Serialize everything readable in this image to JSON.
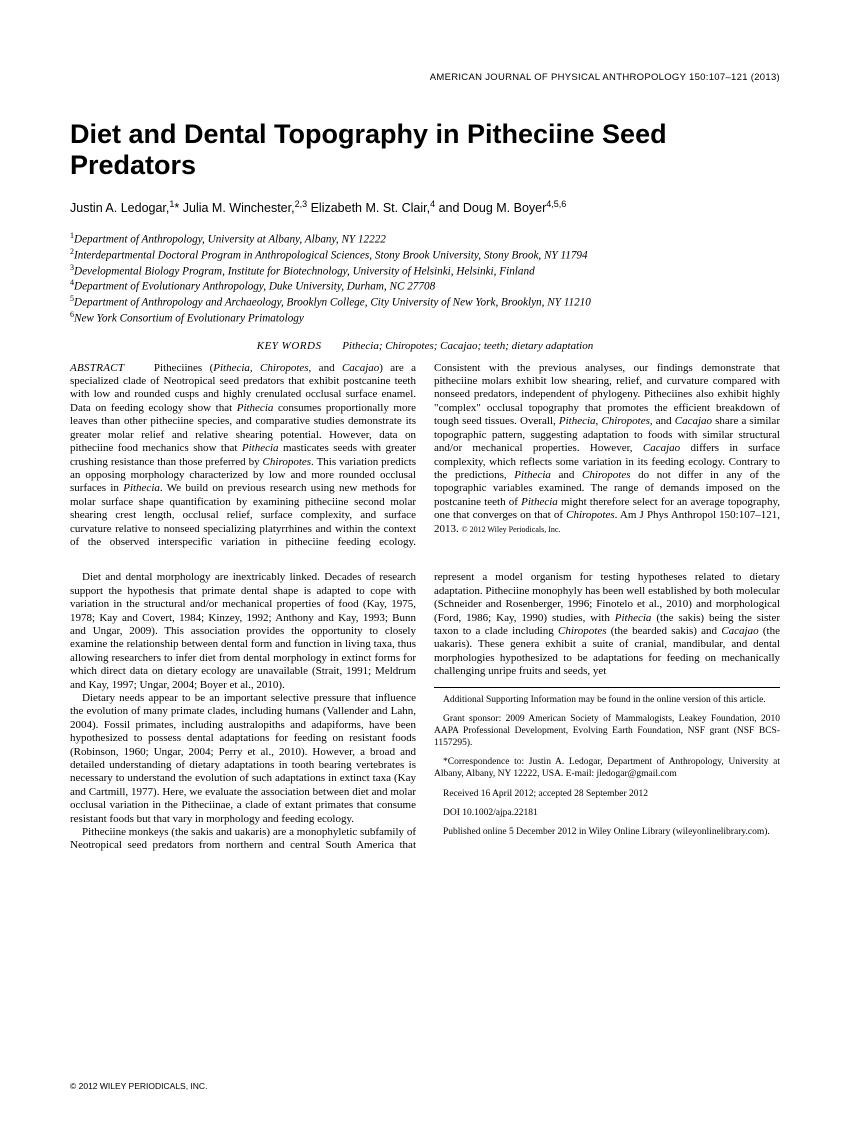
{
  "journal_header": "AMERICAN JOURNAL OF PHYSICAL ANTHROPOLOGY 150:107–121 (2013)",
  "title": "Diet and Dental Topography in Pitheciine Seed Predators",
  "authors_html": "Justin A. Ledogar,<sup>1</sup>* Julia M. Winchester,<sup>2,3</sup> Elizabeth M. St. Clair,<sup>4</sup> and Doug M. Boyer<sup>4,5,6</sup>",
  "affiliations": [
    "Department of Anthropology, University at Albany, Albany, NY 12222",
    "Interdepartmental Doctoral Program in Anthropological Sciences, Stony Brook University, Stony Brook, NY 11794",
    "Developmental Biology Program, Institute for Biotechnology, University of Helsinki, Helsinki, Finland",
    "Department of Evolutionary Anthropology, Duke University, Durham, NC 27708",
    "Department of Anthropology and Archaeology, Brooklyn College, City University of New York, Brooklyn, NY 11210",
    "New York Consortium of Evolutionary Primatology"
  ],
  "keywords_label": "KEY WORDS",
  "keywords_terms": "Pithecia; Chiropotes; Cacajao; teeth; dietary adaptation",
  "abstract_label": "ABSTRACT",
  "abstract_text": "Pitheciines (<em>Pithecia</em>, <em>Chiropotes</em>, and <em>Cacajao</em>) are a specialized clade of Neotropical seed predators that exhibit postcanine teeth with low and rounded cusps and highly crenulated occlusal surface enamel. Data on feeding ecology show that <em>Pithecia</em> consumes proportionally more leaves than other pitheciine species, and comparative studies demonstrate its greater molar relief and relative shearing potential. However, data on pitheciine food mechanics show that <em>Pithecia</em> masticates seeds with greater crushing resistance than those preferred by <em>Chiropotes</em>. This variation predicts an opposing morphology characterized by low and more rounded occlusal surfaces in <em>Pithecia</em>. We build on previous research using new methods for molar surface shape quantification by examining pitheciine second molar shearing crest length, occlusal relief, surface complexity, and surface curvature relative to nonseed specializing platyrrhines and within the context of the observed interspecific variation in pitheciine feeding ecology. Consistent with the previous analyses, our findings demonstrate that pitheciine molars exhibit low shearing, relief, and curvature compared with nonseed predators, independent of phylogeny. Pitheciines also exhibit highly \"complex\" occlusal topography that promotes the efficient breakdown of tough seed tissues. Overall, <em>Pithecia</em>, <em>Chiropotes</em>, and <em>Cacajao</em> share a similar topographic pattern, suggesting adaptation to foods with similar structural and/or mechanical properties. However, <em>Cacajao</em> differs in surface complexity, which reflects some variation in its feeding ecology. Contrary to the predictions, <em>Pithecia</em> and <em>Chiropotes</em> do not differ in any of the topographic variables examined. The range of demands imposed on the postcanine teeth of <em>Pithecia</em> might therefore select for an average topography, one that converges on that of <em>Chiropotes</em>. Am J Phys Anthropol 150:107–121, 2013. <span style='font-size:8px;'>© 2012 Wiley Periodicals, Inc.</span>",
  "body_paragraphs": [
    "Diet and dental morphology are inextricably linked. Decades of research support the hypothesis that primate dental shape is adapted to cope with variation in the structural and/or mechanical properties of food (Kay, 1975, 1978; Kay and Covert, 1984; Kinzey, 1992; Anthony and Kay, 1993; Bunn and Ungar, 2009). This association provides the opportunity to closely examine the relationship between dental form and function in living taxa, thus allowing researchers to infer diet from dental morphology in extinct forms for which direct data on dietary ecology are unavailable (Strait, 1991; Meldrum and Kay, 1997; Ungar, 2004; Boyer et al., 2010).",
    "Dietary needs appear to be an important selective pressure that influence the evolution of many primate clades, including humans (Vallender and Lahn, 2004). Fossil primates, including australopiths and adapiforms, have been hypothesized to possess dental adaptations for feeding on resistant foods (Robinson, 1960; Ungar, 2004; Perry et al., 2010). However, a broad and detailed understanding of dietary adaptations in tooth bearing vertebrates is necessary to understand the evolution of such adaptations in extinct taxa (Kay and Cartmill, 1977). Here, we evaluate the association between diet and molar occlusal variation in the Pitheciinae, a clade of extant primates that consume resistant foods but that vary in morphology and feeding ecology.",
    "Pitheciine monkeys (the sakis and uakaris) are a monophyletic subfamily of Neotropical seed predators from northern and central South America that represent a model organism for testing hypotheses related to dietary adaptation. Pitheciine monophyly has been well established by both molecular (Schneider and Rosenberger, 1996; Finotelo et al., 2010) and morphological (Ford, 1986; Kay, 1990) studies, with <em>Pithecia</em> (the sakis) being the sister taxon to a clade including <em>Chiropotes</em> (the bearded sakis) and <em>Cacajao</em> (the uakaris). These genera exhibit a suite of cranial, mandibular, and dental morphologies hypothesized to be adaptations for feeding on mechanically challenging unripe fruits and seeds, yet"
  ],
  "footnotes": {
    "supporting": "Additional Supporting Information may be found in the online version of this article.",
    "grant": "Grant sponsor: 2009 American Society of Mammalogists, Leakey Foundation, 2010 AAPA Professional Development, Evolving Earth Foundation, NSF grant (NSF BCS-1157295).",
    "correspondence": "*Correspondence to: Justin A. Ledogar, Department of Anthropology, University at Albany, Albany, NY 12222, USA. E-mail: jledogar@gmail.com",
    "received": "Received 16 April 2012; accepted 28 September 2012",
    "doi": "DOI 10.1002/ajpa.22181",
    "published": "Published online 5 December 2012 in Wiley Online Library (wileyonlinelibrary.com)."
  },
  "copyright": "© 2012 WILEY PERIODICALS, INC."
}
